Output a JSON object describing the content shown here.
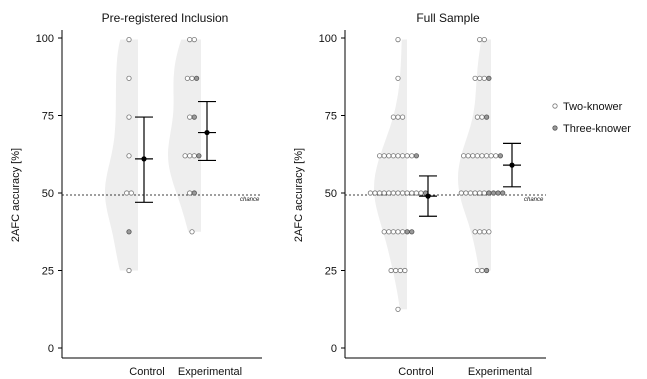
{
  "chart_data": [
    {
      "type": "scatter",
      "subtype": "violin-dotplot-with-mean-ci",
      "title": "Pre-registered Inclusion",
      "ylabel": "2AFC accuracy [%]",
      "xlabel": "",
      "categories": [
        "Control",
        "Experimental"
      ],
      "ylim": [
        0,
        100
      ],
      "yticks": [
        0,
        25,
        50,
        75,
        100
      ],
      "chance": {
        "value": 50,
        "label": "chance"
      },
      "summary": [
        {
          "category": "Control",
          "mean": 61,
          "ci_low": 47,
          "ci_high": 74.5
        },
        {
          "category": "Experimental",
          "mean": 69.5,
          "ci_low": 60.5,
          "ci_high": 79.5
        }
      ],
      "series": [
        {
          "name": "Two-knower",
          "points": {
            "Control": [
              99.5,
              87,
              74.5,
              62,
              50,
              50,
              25
            ],
            "Experimental": [
              99.5,
              99.5,
              87,
              87,
              74.5,
              62,
              62,
              62,
              50,
              37.5
            ]
          }
        },
        {
          "name": "Three-knower",
          "points": {
            "Control": [
              37.5
            ],
            "Experimental": [
              87,
              74.5,
              62,
              50
            ]
          }
        }
      ]
    },
    {
      "type": "scatter",
      "subtype": "violin-dotplot-with-mean-ci",
      "title": "Full Sample",
      "ylabel": "2AFC accuracy [%]",
      "xlabel": "",
      "categories": [
        "Control",
        "Experimental"
      ],
      "ylim": [
        0,
        100
      ],
      "yticks": [
        0,
        25,
        50,
        75,
        100
      ],
      "chance": {
        "value": 50,
        "label": "chance"
      },
      "summary": [
        {
          "category": "Control",
          "mean": 49,
          "ci_low": 42.5,
          "ci_high": 55.5
        },
        {
          "category": "Experimental",
          "mean": 59,
          "ci_low": 52,
          "ci_high": 66
        }
      ],
      "series": [
        {
          "name": "Two-knower",
          "points": {
            "Control": [
              99.5,
              87,
              74.5,
              74.5,
              74.5,
              62,
              62,
              62,
              62,
              62,
              62,
              62,
              62,
              50,
              50,
              50,
              50,
              50,
              50,
              50,
              50,
              50,
              50,
              50,
              50,
              37.5,
              37.5,
              37.5,
              37.5,
              37.5,
              25,
              25,
              25,
              25,
              12.5
            ],
            "Experimental": [
              99.5,
              99.5,
              87,
              87,
              87,
              74.5,
              74.5,
              62,
              62,
              62,
              62,
              62,
              62,
              62,
              62,
              50,
              50,
              50,
              50,
              50,
              50,
              37.5,
              37.5,
              37.5,
              37.5,
              25,
              25
            ]
          }
        },
        {
          "name": "Three-knower",
          "points": {
            "Control": [
              62,
              50,
              37.5,
              37.5
            ],
            "Experimental": [
              87,
              74.5,
              62,
              50,
              50,
              50,
              50,
              25
            ]
          }
        }
      ]
    }
  ],
  "legend": {
    "items": [
      {
        "label": "Two-knower",
        "marker": "open-circle"
      },
      {
        "label": "Three-knower",
        "marker": "gray-circle"
      }
    ],
    "placement": "right"
  },
  "colors": {
    "violin": "#eeeeee",
    "two_knower_fill": "#ffffff",
    "two_knower_stroke": "#777777",
    "three_knower_fill": "#9a9a9a",
    "three_knower_stroke": "#555555",
    "summary": "#000000",
    "axis": "#000000"
  }
}
